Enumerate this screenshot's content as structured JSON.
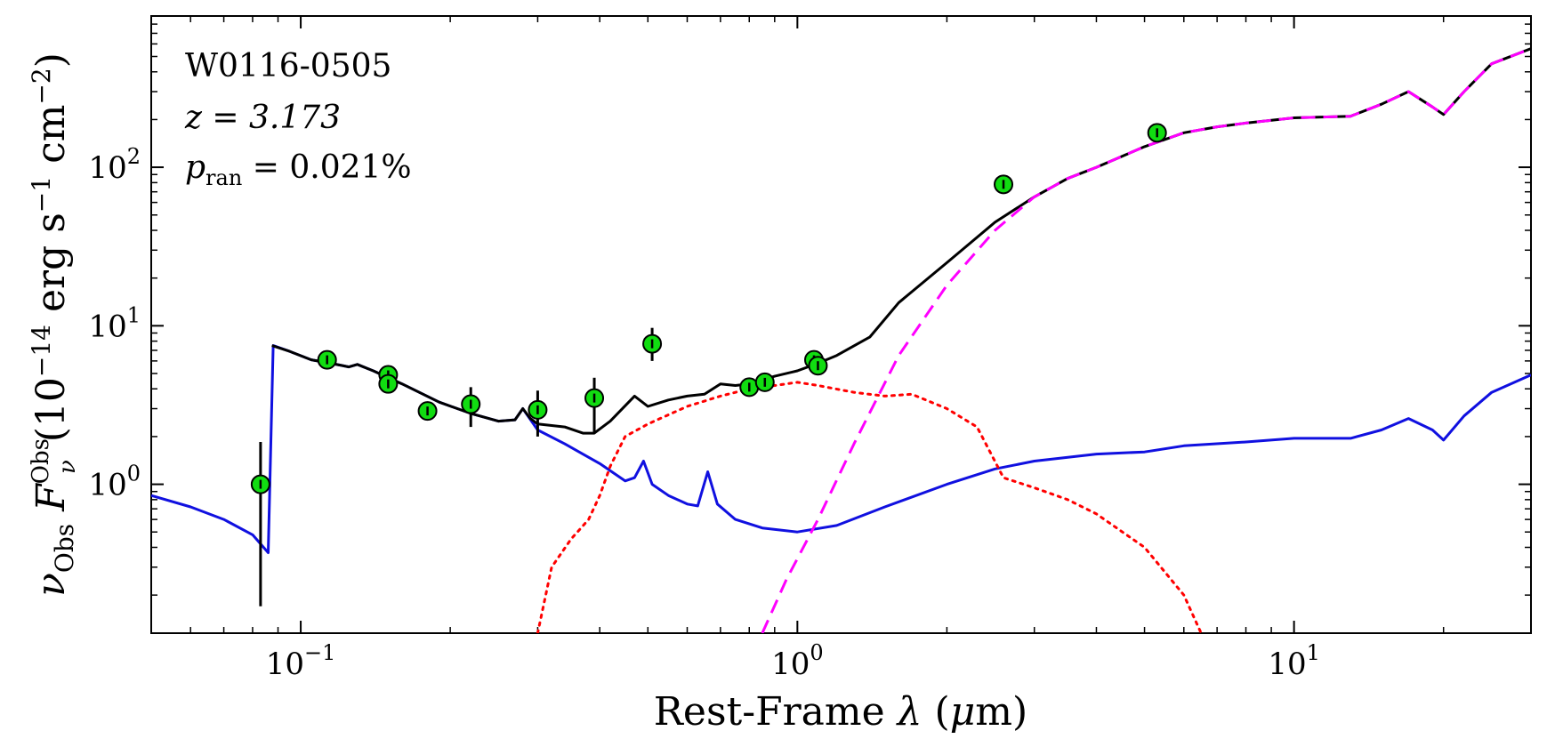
{
  "chart_data": {
    "type": "line",
    "title": "",
    "xlabel": "Rest-Frame λ (μm)",
    "ylabel": "νObs FνObs (10−14 erg s−1 cm−2)",
    "xscale": "log",
    "yscale": "log",
    "xlim": [
      0.05,
      30
    ],
    "ylim": [
      0.115,
      900
    ],
    "x_ticks": [
      {
        "value": 0.1,
        "base": "10",
        "exp": "−1"
      },
      {
        "value": 1,
        "base": "10",
        "exp": "0"
      },
      {
        "value": 10,
        "base": "10",
        "exp": "1"
      }
    ],
    "y_ticks": [
      {
        "value": 1,
        "base": "10",
        "exp": "0"
      },
      {
        "value": 10,
        "base": "10",
        "exp": "1"
      },
      {
        "value": 100,
        "base": "10",
        "exp": "2"
      }
    ],
    "grid": false,
    "annotations": {
      "object": "W0116-0505",
      "redshift": "z = 3.173",
      "p_ran_symbol": "p",
      "p_ran_sub": "ran",
      "p_ran_value": " = 0.021%"
    },
    "colors": {
      "total": "#000000",
      "blue": "#1010e0",
      "red": "#ff0000",
      "magenta": "#ff00ff",
      "points": "#11dd11"
    },
    "series": [
      {
        "style": "solid",
        "color": "#000000",
        "points": [
          [
            0.0875,
            7.5
          ],
          [
            0.095,
            6.9
          ],
          [
            0.105,
            6.1
          ],
          [
            0.115,
            5.8
          ],
          [
            0.125,
            5.5
          ],
          [
            0.13,
            5.7
          ],
          [
            0.14,
            5.2
          ],
          [
            0.16,
            4.3
          ],
          [
            0.19,
            3.3
          ],
          [
            0.22,
            2.8
          ],
          [
            0.25,
            2.5
          ],
          [
            0.27,
            2.55
          ],
          [
            0.28,
            3.0
          ],
          [
            0.29,
            2.6
          ],
          [
            0.3,
            2.4
          ],
          [
            0.34,
            2.3
          ],
          [
            0.37,
            2.1
          ],
          [
            0.39,
            2.1
          ],
          [
            0.42,
            2.5
          ],
          [
            0.47,
            3.6
          ],
          [
            0.5,
            3.1
          ],
          [
            0.55,
            3.4
          ],
          [
            0.6,
            3.6
          ],
          [
            0.65,
            3.7
          ],
          [
            0.7,
            4.3
          ],
          [
            0.75,
            4.2
          ],
          [
            0.8,
            4.3
          ],
          [
            0.9,
            4.8
          ],
          [
            1.0,
            5.2
          ],
          [
            1.1,
            5.8
          ],
          [
            1.2,
            6.5
          ],
          [
            1.4,
            8.5
          ],
          [
            1.6,
            14
          ],
          [
            2.0,
            25
          ],
          [
            2.5,
            45
          ],
          [
            3.0,
            65
          ],
          [
            3.5,
            85
          ],
          [
            4.0,
            100
          ],
          [
            5.0,
            135
          ],
          [
            6.0,
            165
          ],
          [
            7.0,
            180
          ],
          [
            8.0,
            190
          ],
          [
            10,
            205
          ],
          [
            13,
            210
          ],
          [
            15,
            250
          ],
          [
            17,
            300
          ],
          [
            19,
            240
          ],
          [
            20,
            215
          ],
          [
            22,
            300
          ],
          [
            25,
            450
          ],
          [
            30,
            560
          ]
        ]
      },
      {
        "style": "solid",
        "color": "#1010e0",
        "points": [
          [
            0.05,
            0.85
          ],
          [
            0.06,
            0.72
          ],
          [
            0.07,
            0.6
          ],
          [
            0.08,
            0.48
          ],
          [
            0.086,
            0.37
          ],
          [
            0.088,
            7.5
          ],
          [
            0.095,
            6.9
          ],
          [
            0.105,
            6.1
          ],
          [
            0.115,
            5.8
          ],
          [
            0.125,
            5.5
          ],
          [
            0.13,
            5.7
          ],
          [
            0.14,
            5.2
          ],
          [
            0.16,
            4.3
          ],
          [
            0.19,
            3.3
          ],
          [
            0.22,
            2.8
          ],
          [
            0.25,
            2.5
          ],
          [
            0.27,
            2.55
          ],
          [
            0.28,
            3.0
          ],
          [
            0.3,
            2.2
          ],
          [
            0.34,
            1.8
          ],
          [
            0.4,
            1.35
          ],
          [
            0.45,
            1.05
          ],
          [
            0.47,
            1.1
          ],
          [
            0.49,
            1.4
          ],
          [
            0.51,
            1.0
          ],
          [
            0.55,
            0.85
          ],
          [
            0.6,
            0.75
          ],
          [
            0.63,
            0.73
          ],
          [
            0.66,
            1.2
          ],
          [
            0.69,
            0.75
          ],
          [
            0.75,
            0.6
          ],
          [
            0.85,
            0.53
          ],
          [
            1.0,
            0.5
          ],
          [
            1.2,
            0.55
          ],
          [
            1.5,
            0.72
          ],
          [
            2.0,
            1.0
          ],
          [
            2.5,
            1.25
          ],
          [
            3.0,
            1.4
          ],
          [
            4.0,
            1.55
          ],
          [
            5.0,
            1.6
          ],
          [
            6.0,
            1.75
          ],
          [
            8.0,
            1.85
          ],
          [
            10,
            1.95
          ],
          [
            13,
            1.95
          ],
          [
            15,
            2.2
          ],
          [
            17,
            2.6
          ],
          [
            19,
            2.2
          ],
          [
            20,
            1.9
          ],
          [
            22,
            2.7
          ],
          [
            25,
            3.8
          ],
          [
            30,
            4.9
          ]
        ]
      },
      {
        "style": "dotted",
        "color": "#ff0000",
        "points": [
          [
            0.3,
            0.115
          ],
          [
            0.32,
            0.3
          ],
          [
            0.35,
            0.45
          ],
          [
            0.38,
            0.6
          ],
          [
            0.4,
            0.85
          ],
          [
            0.42,
            1.3
          ],
          [
            0.45,
            2.0
          ],
          [
            0.5,
            2.4
          ],
          [
            0.6,
            3.1
          ],
          [
            0.7,
            3.6
          ],
          [
            0.8,
            4.0
          ],
          [
            0.9,
            4.2
          ],
          [
            1.0,
            4.4
          ],
          [
            1.1,
            4.2
          ],
          [
            1.3,
            3.8
          ],
          [
            1.5,
            3.6
          ],
          [
            1.7,
            3.7
          ],
          [
            2.0,
            3.0
          ],
          [
            2.3,
            2.3
          ],
          [
            2.6,
            1.1
          ],
          [
            3.0,
            0.95
          ],
          [
            3.5,
            0.8
          ],
          [
            4.0,
            0.65
          ],
          [
            5.0,
            0.4
          ],
          [
            6.0,
            0.2
          ],
          [
            6.5,
            0.115
          ]
        ]
      },
      {
        "style": "dashed",
        "color": "#ff00ff",
        "points": [
          [
            0.85,
            0.115
          ],
          [
            0.95,
            0.25
          ],
          [
            1.1,
            0.6
          ],
          [
            1.3,
            1.8
          ],
          [
            1.6,
            6.5
          ],
          [
            2.0,
            18
          ],
          [
            2.5,
            40
          ],
          [
            3.0,
            65
          ],
          [
            3.5,
            85
          ],
          [
            4.0,
            100
          ],
          [
            5.0,
            135
          ],
          [
            6.0,
            165
          ],
          [
            7.0,
            180
          ],
          [
            8.0,
            190
          ],
          [
            10,
            205
          ],
          [
            13,
            210
          ],
          [
            15,
            250
          ],
          [
            17,
            300
          ],
          [
            19,
            240
          ],
          [
            20,
            215
          ],
          [
            22,
            300
          ],
          [
            25,
            450
          ],
          [
            30,
            560
          ]
        ]
      }
    ],
    "photometry": [
      {
        "x": 0.083,
        "y": 1.0,
        "ylo": 0.17,
        "yhi": 1.85
      },
      {
        "x": 0.113,
        "y": 6.1,
        "ylo": 5.6,
        "yhi": 6.6
      },
      {
        "x": 0.15,
        "y": 4.9,
        "ylo": 4.6,
        "yhi": 5.2
      },
      {
        "x": 0.15,
        "y": 4.3,
        "ylo": 4.0,
        "yhi": 4.6
      },
      {
        "x": 0.18,
        "y": 2.9,
        "ylo": 2.7,
        "yhi": 3.1
      },
      {
        "x": 0.22,
        "y": 3.2,
        "ylo": 2.3,
        "yhi": 4.1
      },
      {
        "x": 0.3,
        "y": 2.95,
        "ylo": 2.0,
        "yhi": 3.9
      },
      {
        "x": 0.39,
        "y": 3.5,
        "ylo": 2.1,
        "yhi": 4.7
      },
      {
        "x": 0.51,
        "y": 7.7,
        "ylo": 6.0,
        "yhi": 9.7
      },
      {
        "x": 0.8,
        "y": 4.1,
        "ylo": 3.9,
        "yhi": 4.3
      },
      {
        "x": 0.86,
        "y": 4.4,
        "ylo": 4.2,
        "yhi": 4.6
      },
      {
        "x": 1.08,
        "y": 6.1,
        "ylo": 5.8,
        "yhi": 6.4
      },
      {
        "x": 1.1,
        "y": 5.6,
        "ylo": 5.3,
        "yhi": 5.9
      },
      {
        "x": 2.6,
        "y": 78,
        "ylo": 73,
        "yhi": 83
      },
      {
        "x": 5.3,
        "y": 165,
        "ylo": 155,
        "yhi": 175
      }
    ]
  }
}
